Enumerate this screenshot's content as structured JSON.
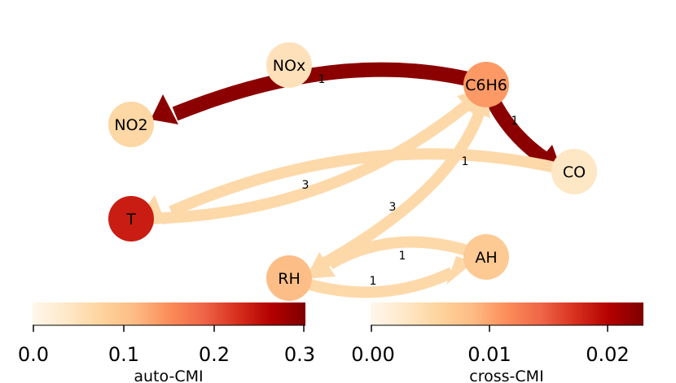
{
  "nodes": [
    {
      "id": "NOx",
      "label": "NOx",
      "auto_cmi": 0.05
    },
    {
      "id": "C6H6",
      "label": "C6H6",
      "auto_cmi": 0.14
    },
    {
      "id": "NO2",
      "label": "NO2",
      "auto_cmi": 0.07
    },
    {
      "id": "CO",
      "label": "CO",
      "auto_cmi": 0.04
    },
    {
      "id": "T",
      "label": "T",
      "auto_cmi": 0.24
    },
    {
      "id": "RH",
      "label": "RH",
      "auto_cmi": 0.11
    },
    {
      "id": "AH",
      "label": "AH",
      "auto_cmi": 0.09
    }
  ],
  "edges": [
    {
      "id": "c6h6-no2",
      "from": "C6H6",
      "to": "NO2",
      "lag": "1",
      "cross_cmi": 0.023
    },
    {
      "id": "c6h6-co",
      "from": "C6H6",
      "to": "CO",
      "lag": "1",
      "cross_cmi": 0.023
    },
    {
      "id": "co-t",
      "from": "CO",
      "to": "T",
      "lag": "1",
      "cross_cmi": 0.005
    },
    {
      "id": "t-c6h6",
      "from": "T",
      "to": "C6H6",
      "lag": "3",
      "cross_cmi": 0.005
    },
    {
      "id": "rh-c6h6",
      "from": "RH",
      "to": "C6H6",
      "lag": "3",
      "cross_cmi": 0.005
    },
    {
      "id": "rh-ah",
      "from": "RH",
      "to": "AH",
      "lag": "1",
      "cross_cmi": 0.005
    },
    {
      "id": "ah-rh",
      "from": "AH",
      "to": "RH",
      "lag": "1",
      "cross_cmi": 0.005
    }
  ],
  "colorbars": [
    {
      "id": "auto",
      "label": "auto-CMI",
      "ticks": [
        "0.0",
        "0.1",
        "0.2",
        "0.3"
      ],
      "min": 0,
      "max": 0.3
    },
    {
      "id": "cross",
      "label": "cross-CMI",
      "ticks": [
        "0.00",
        "0.01",
        "0.02"
      ],
      "min": 0,
      "max": 0.023
    }
  ],
  "colors": {
    "edge_light": "#fdd9aa",
    "edge_dark": "#8b0000",
    "cmap": [
      "#fff7ec",
      "#fee8c8",
      "#fdd49e",
      "#fdbb84",
      "#fc8d59",
      "#ef6548",
      "#d7301f",
      "#b30000",
      "#7f0000"
    ]
  }
}
